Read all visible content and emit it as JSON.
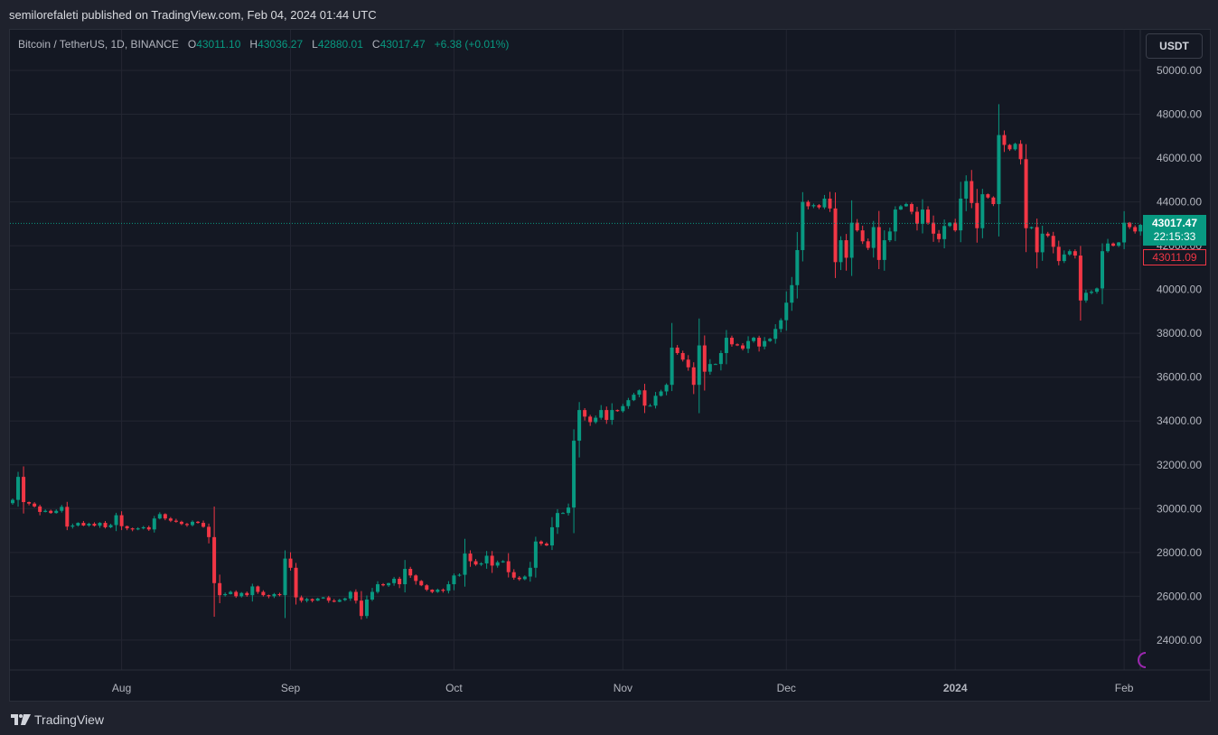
{
  "header": {
    "published_text": "semilorefaleti published on TradingView.com, Feb 04, 2024 01:44 UTC"
  },
  "legend": {
    "symbol": "Bitcoin / TetherUS, 1D, BINANCE",
    "open_label": "O",
    "open": "43011.10",
    "high_label": "H",
    "high": "43036.27",
    "low_label": "L",
    "low": "42880.01",
    "close_label": "C",
    "close": "43017.47",
    "change": "+6.38 (+0.01%)"
  },
  "currency_button": "USDT",
  "price_tag": {
    "price": "43017.47",
    "countdown": "22:15:33",
    "prev_close": "43011.09"
  },
  "footer": {
    "brand": "TradingView"
  },
  "colors": {
    "up": "#089981",
    "down": "#f23645",
    "background": "#141823",
    "grid": "#232632",
    "text": "#b2b5be"
  },
  "chart_data": {
    "type": "candlestick",
    "title": "Bitcoin / TetherUS, 1D, BINANCE",
    "xlabel": "",
    "ylabel": "USDT",
    "ylim": [
      22500,
      51000
    ],
    "y_ticks": [
      24000,
      26000,
      28000,
      30000,
      32000,
      34000,
      36000,
      38000,
      40000,
      42000,
      44000,
      46000,
      48000,
      50000
    ],
    "x_tick_labels": [
      {
        "label": "Aug",
        "index": 20
      },
      {
        "label": "Sep",
        "index": 51
      },
      {
        "label": "Oct",
        "index": 81
      },
      {
        "label": "Nov",
        "index": 112
      },
      {
        "label": "Dec",
        "index": 142
      },
      {
        "label": "2024",
        "index": 173,
        "bold": true
      },
      {
        "label": "Feb",
        "index": 204
      }
    ],
    "start_date": "2023-07-12",
    "grid": true,
    "last_price": 43017.47,
    "closes": [
      30400,
      31450,
      30300,
      30230,
      30100,
      29850,
      29900,
      29800,
      29900,
      30080,
      29180,
      29230,
      29350,
      29230,
      29310,
      29220,
      29350,
      29150,
      29250,
      29700,
      29200,
      29100,
      29050,
      29100,
      29150,
      29050,
      29550,
      29750,
      29550,
      29450,
      29400,
      29300,
      29250,
      29400,
      29350,
      29170,
      28700,
      26600,
      26050,
      26100,
      26200,
      26000,
      26150,
      26050,
      26450,
      26200,
      26050,
      26000,
      26100,
      26050,
      27720,
      27300,
      25950,
      25800,
      25870,
      25800,
      25900,
      25950,
      25800,
      25750,
      25830,
      25900,
      26200,
      25800,
      25100,
      25850,
      26200,
      26550,
      26500,
      26600,
      26800,
      26550,
      27250,
      26950,
      26700,
      26500,
      26300,
      26200,
      26300,
      26250,
      26550,
      26950,
      26980,
      27950,
      27600,
      27450,
      27500,
      27850,
      27400,
      27550,
      27600,
      27100,
      26850,
      26780,
      26900,
      27300,
      28500,
      28400,
      28320,
      29150,
      29800,
      29800,
      30050,
      33100,
      34500,
      34200,
      33950,
      34150,
      34500,
      34050,
      34500,
      34450,
      34680,
      34950,
      35200,
      35400,
      34700,
      34700,
      35150,
      35350,
      35650,
      37350,
      37100,
      36800,
      36450,
      35650,
      37450,
      36250,
      36600,
      36600,
      37100,
      37800,
      37500,
      37450,
      37300,
      37650,
      37800,
      37400,
      37650,
      37750,
      38200,
      38600,
      39400,
      40200,
      41800,
      44000,
      43800,
      43850,
      43750,
      44150,
      43700,
      41250,
      42250,
      41450,
      43050,
      42700,
      42200,
      41900,
      42850,
      41350,
      42250,
      42650,
      43650,
      43800,
      43900,
      43550,
      43000,
      43650,
      43050,
      42550,
      42300,
      42900,
      43050,
      42700,
      44150,
      44950,
      43950,
      42800,
      44350,
      44200,
      43900,
      47050,
      46600,
      46400,
      46650,
      45950,
      42800,
      42850,
      41700,
      42550,
      42450,
      41950,
      41300,
      41600,
      41750,
      41550,
      39500,
      39850,
      39900,
      40050,
      41750,
      42100,
      42000,
      42150,
      43050,
      42850,
      42650,
      42950,
      43015
    ],
    "note": "OHLC approximated from pixels; open of each day ≈ previous close"
  }
}
